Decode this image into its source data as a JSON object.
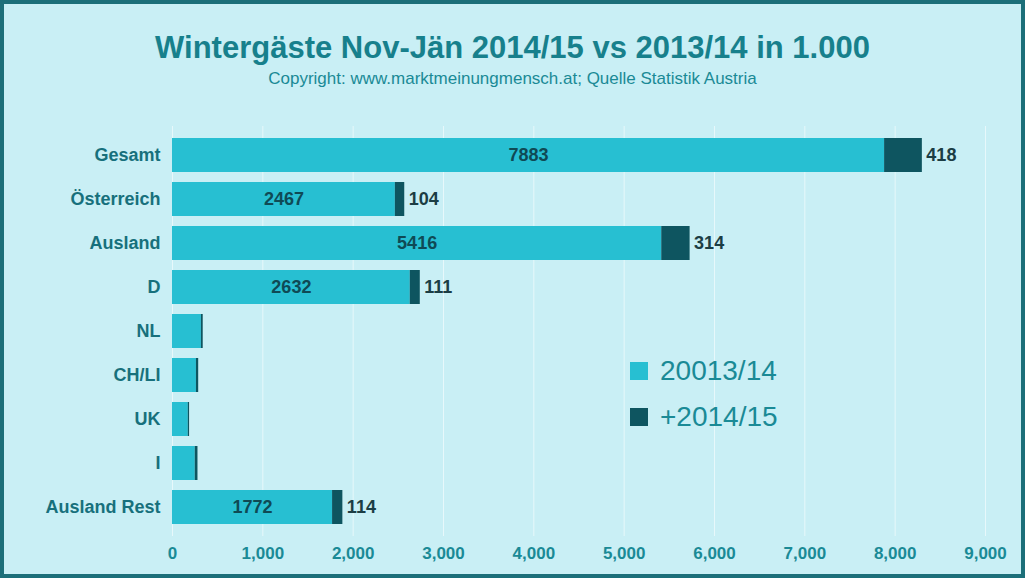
{
  "chart_data": {
    "type": "bar",
    "orientation": "horizontal",
    "stacked": true,
    "title": "Wintergäste Nov-Jän 2014/15 vs 2013/14 in 1.000",
    "subtitle": "Copyright: www.marktmeinungmensch.at; Quelle Statistik Austria",
    "categories": [
      "Gesamt",
      "Österreich",
      "Ausland",
      "D",
      "NL",
      "CH/LI",
      "UK",
      "I",
      "Ausland Rest"
    ],
    "series": [
      {
        "name": "20013/14",
        "color": "#27bfd2",
        "values": [
          7883,
          2467,
          5416,
          2632,
          320,
          265,
          175,
          252,
          1772
        ],
        "value_labels": [
          "7883",
          "2467",
          "5416",
          "2632",
          null,
          null,
          null,
          null,
          "1772"
        ]
      },
      {
        "name": "+2014/15",
        "color": "#0e5560",
        "values": [
          418,
          104,
          314,
          111,
          20,
          25,
          14,
          30,
          114
        ],
        "value_labels": [
          "418",
          "104",
          "314",
          "111",
          null,
          null,
          null,
          null,
          "114"
        ]
      }
    ],
    "xlim": [
      0,
      9000
    ],
    "xticks": [
      0,
      1000,
      2000,
      3000,
      4000,
      5000,
      6000,
      7000,
      8000,
      9000
    ],
    "grid": true,
    "legend": "lower right",
    "data_labels": true
  }
}
